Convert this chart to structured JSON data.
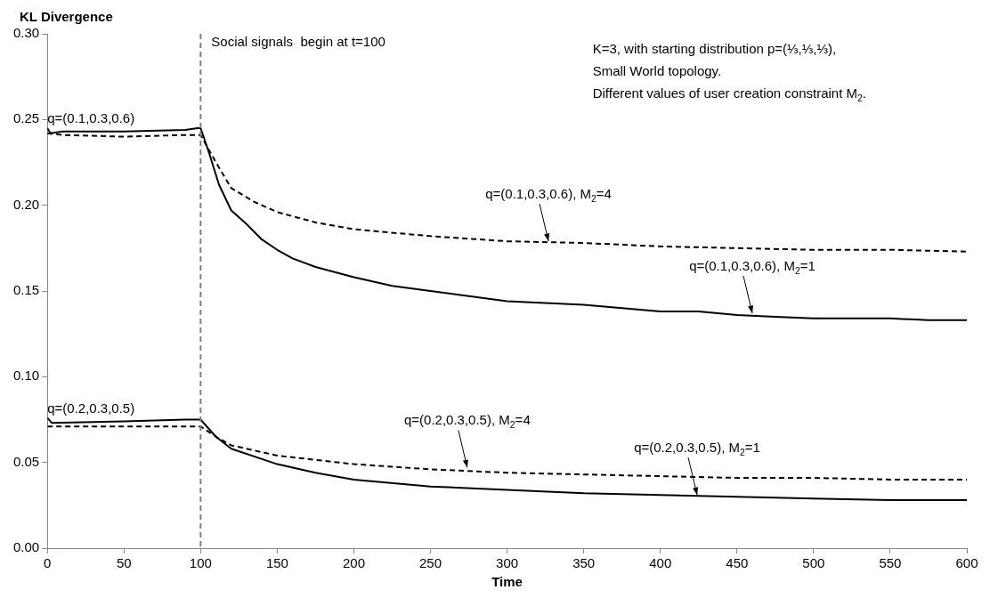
{
  "chart_data": {
    "type": "line",
    "xlabel": "Time",
    "ylabel": "KL Divergence",
    "xlim": [
      0,
      600
    ],
    "xticks": [
      0,
      50,
      100,
      150,
      200,
      250,
      300,
      350,
      400,
      450,
      500,
      550,
      600
    ],
    "ylim": [
      0,
      0.3
    ],
    "yticks": [
      {
        "value": 0,
        "label": "0.00"
      },
      {
        "value": 0.05,
        "label": "0.05"
      },
      {
        "value": 0.1,
        "label": "0.10"
      },
      {
        "value": 0.15,
        "label": "0.15"
      },
      {
        "value": 0.2,
        "label": "0.20"
      },
      {
        "value": 0.25,
        "label": "0.25"
      },
      {
        "value": 0.3,
        "label": "0.30"
      }
    ],
    "grid": false,
    "legend": false,
    "marker": "none",
    "series": [
      {
        "color": "#000000",
        "line_style": "solid",
        "x": [
          0,
          2,
          10,
          50,
          90,
          98,
          100,
          105,
          112,
          120,
          130,
          140,
          150,
          160,
          175,
          200,
          225,
          250,
          275,
          300,
          325,
          350,
          375,
          400,
          425,
          450,
          475,
          500,
          525,
          550,
          575,
          600
        ],
        "values": [
          0.245,
          0.242,
          0.243,
          0.243,
          0.244,
          0.245,
          0.245,
          0.232,
          0.212,
          0.197,
          0.189,
          0.18,
          0.174,
          0.169,
          0.164,
          0.158,
          0.153,
          0.15,
          0.147,
          0.144,
          0.143,
          0.142,
          0.14,
          0.138,
          0.138,
          0.136,
          0.135,
          0.134,
          0.134,
          0.134,
          0.133,
          0.133
        ]
      },
      {
        "color": "#000000",
        "line_style": "dashed",
        "x": [
          0,
          10,
          50,
          90,
          100,
          110,
          120,
          135,
          150,
          175,
          200,
          250,
          300,
          350,
          400,
          450,
          500,
          550,
          600
        ],
        "values": [
          0.242,
          0.241,
          0.24,
          0.241,
          0.241,
          0.225,
          0.21,
          0.202,
          0.196,
          0.19,
          0.186,
          0.182,
          0.179,
          0.178,
          0.176,
          0.175,
          0.174,
          0.174,
          0.173
        ]
      },
      {
        "color": "#000000",
        "line_style": "solid",
        "x": [
          0,
          3,
          50,
          90,
          100,
          110,
          120,
          150,
          175,
          200,
          250,
          300,
          350,
          400,
          450,
          500,
          550,
          600
        ],
        "values": [
          0.076,
          0.073,
          0.074,
          0.075,
          0.075,
          0.065,
          0.058,
          0.049,
          0.044,
          0.04,
          0.036,
          0.034,
          0.032,
          0.031,
          0.03,
          0.029,
          0.028,
          0.028
        ]
      },
      {
        "color": "#000000",
        "line_style": "dashed",
        "x": [
          0,
          50,
          100,
          110,
          120,
          150,
          200,
          250,
          300,
          350,
          400,
          450,
          500,
          550,
          600
        ],
        "values": [
          0.071,
          0.071,
          0.071,
          0.065,
          0.06,
          0.054,
          0.049,
          0.046,
          0.044,
          0.043,
          0.042,
          0.041,
          0.041,
          0.04,
          0.04
        ]
      }
    ],
    "ref_lines": [
      {
        "axis": "x",
        "value": 100,
        "label": "Social signals  begin at t=100",
        "color": "#808080",
        "line_style": "dashed"
      }
    ],
    "annotations": [
      "K=3, with starting distribution p=(⅓,⅓,⅓),",
      "Small World topology.",
      "Different values of user creation constraint M$_{2}$.",
      {
        "text": "q=(0.1,0.3,0.6)",
        "x": 0,
        "y": 0.245
      },
      {
        "text": "q=(0.2,0.3,0.5)",
        "x": 0,
        "y": 0.076
      },
      {
        "text": "q=(0.1,0.3,0.6), M$_{2}$=4",
        "x": 327,
        "y": 0.178
      },
      {
        "text": "q=(0.1,0.3,0.6), M$_{2}$=1",
        "x": 460,
        "y": 0.136
      },
      {
        "text": "q=(0.2,0.3,0.5), M$_{2}$=4",
        "x": 274,
        "y": 0.046
      },
      {
        "text": "q=(0.2,0.3,0.5), M$_{2}$=1",
        "x": 424,
        "y": 0.03
      }
    ]
  }
}
